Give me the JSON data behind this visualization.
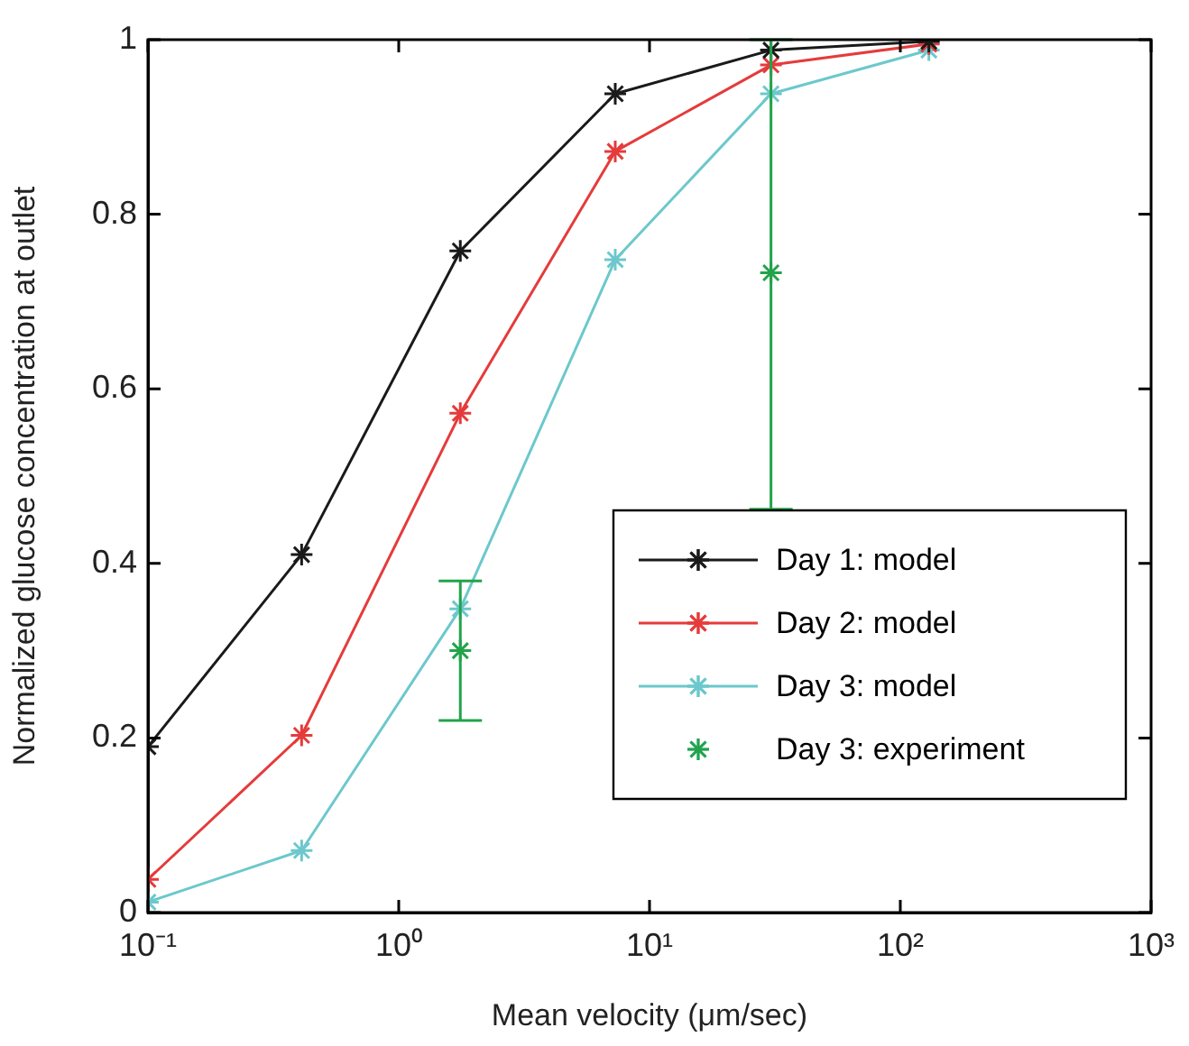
{
  "chart_data": {
    "type": "line",
    "xlabel": "Mean velocity (μm/sec)",
    "ylabel": "Normalized glucose concentration at outlet",
    "log": "x",
    "xlim": [
      0.1,
      1000
    ],
    "xticks": [
      {
        "value": 0.1,
        "label": "10⁻¹"
      },
      {
        "value": 1,
        "label": "10⁰"
      },
      {
        "value": 10,
        "label": "10¹"
      },
      {
        "value": 100,
        "label": "10²"
      },
      {
        "value": 1000,
        "label": "10³"
      }
    ],
    "ylim": [
      0,
      1
    ],
    "yticks": [
      0,
      0.2,
      0.4,
      0.6,
      0.8,
      1
    ],
    "legend": "bottom right",
    "marker": "cross",
    "line_style": "solid",
    "x": [
      0.1,
      0.41,
      1.76,
      7.3,
      30.5,
      130
    ],
    "series": [
      {
        "name": "Day 1: model",
        "color": "#1a1a1a",
        "values": [
          0.19,
          0.41,
          0.758,
          0.938,
          0.988,
          0.998
        ]
      },
      {
        "name": "Day 2: model",
        "color": "#e53b3b",
        "values": [
          0.038,
          0.203,
          0.572,
          0.872,
          0.971,
          0.995
        ]
      },
      {
        "name": "Day 3: model",
        "color": "#6cc8cc",
        "values": [
          0.012,
          0.071,
          0.348,
          0.748,
          0.938,
          0.988
        ]
      },
      {
        "name": "Day 3: experiment",
        "type": "scatter",
        "color": "#22a34a",
        "x": [
          1.76,
          30.5
        ],
        "values": [
          0.3,
          0.733
        ],
        "errors": [
          [
            0.22,
            0.38
          ],
          [
            0.462,
            1.0
          ]
        ]
      }
    ]
  }
}
